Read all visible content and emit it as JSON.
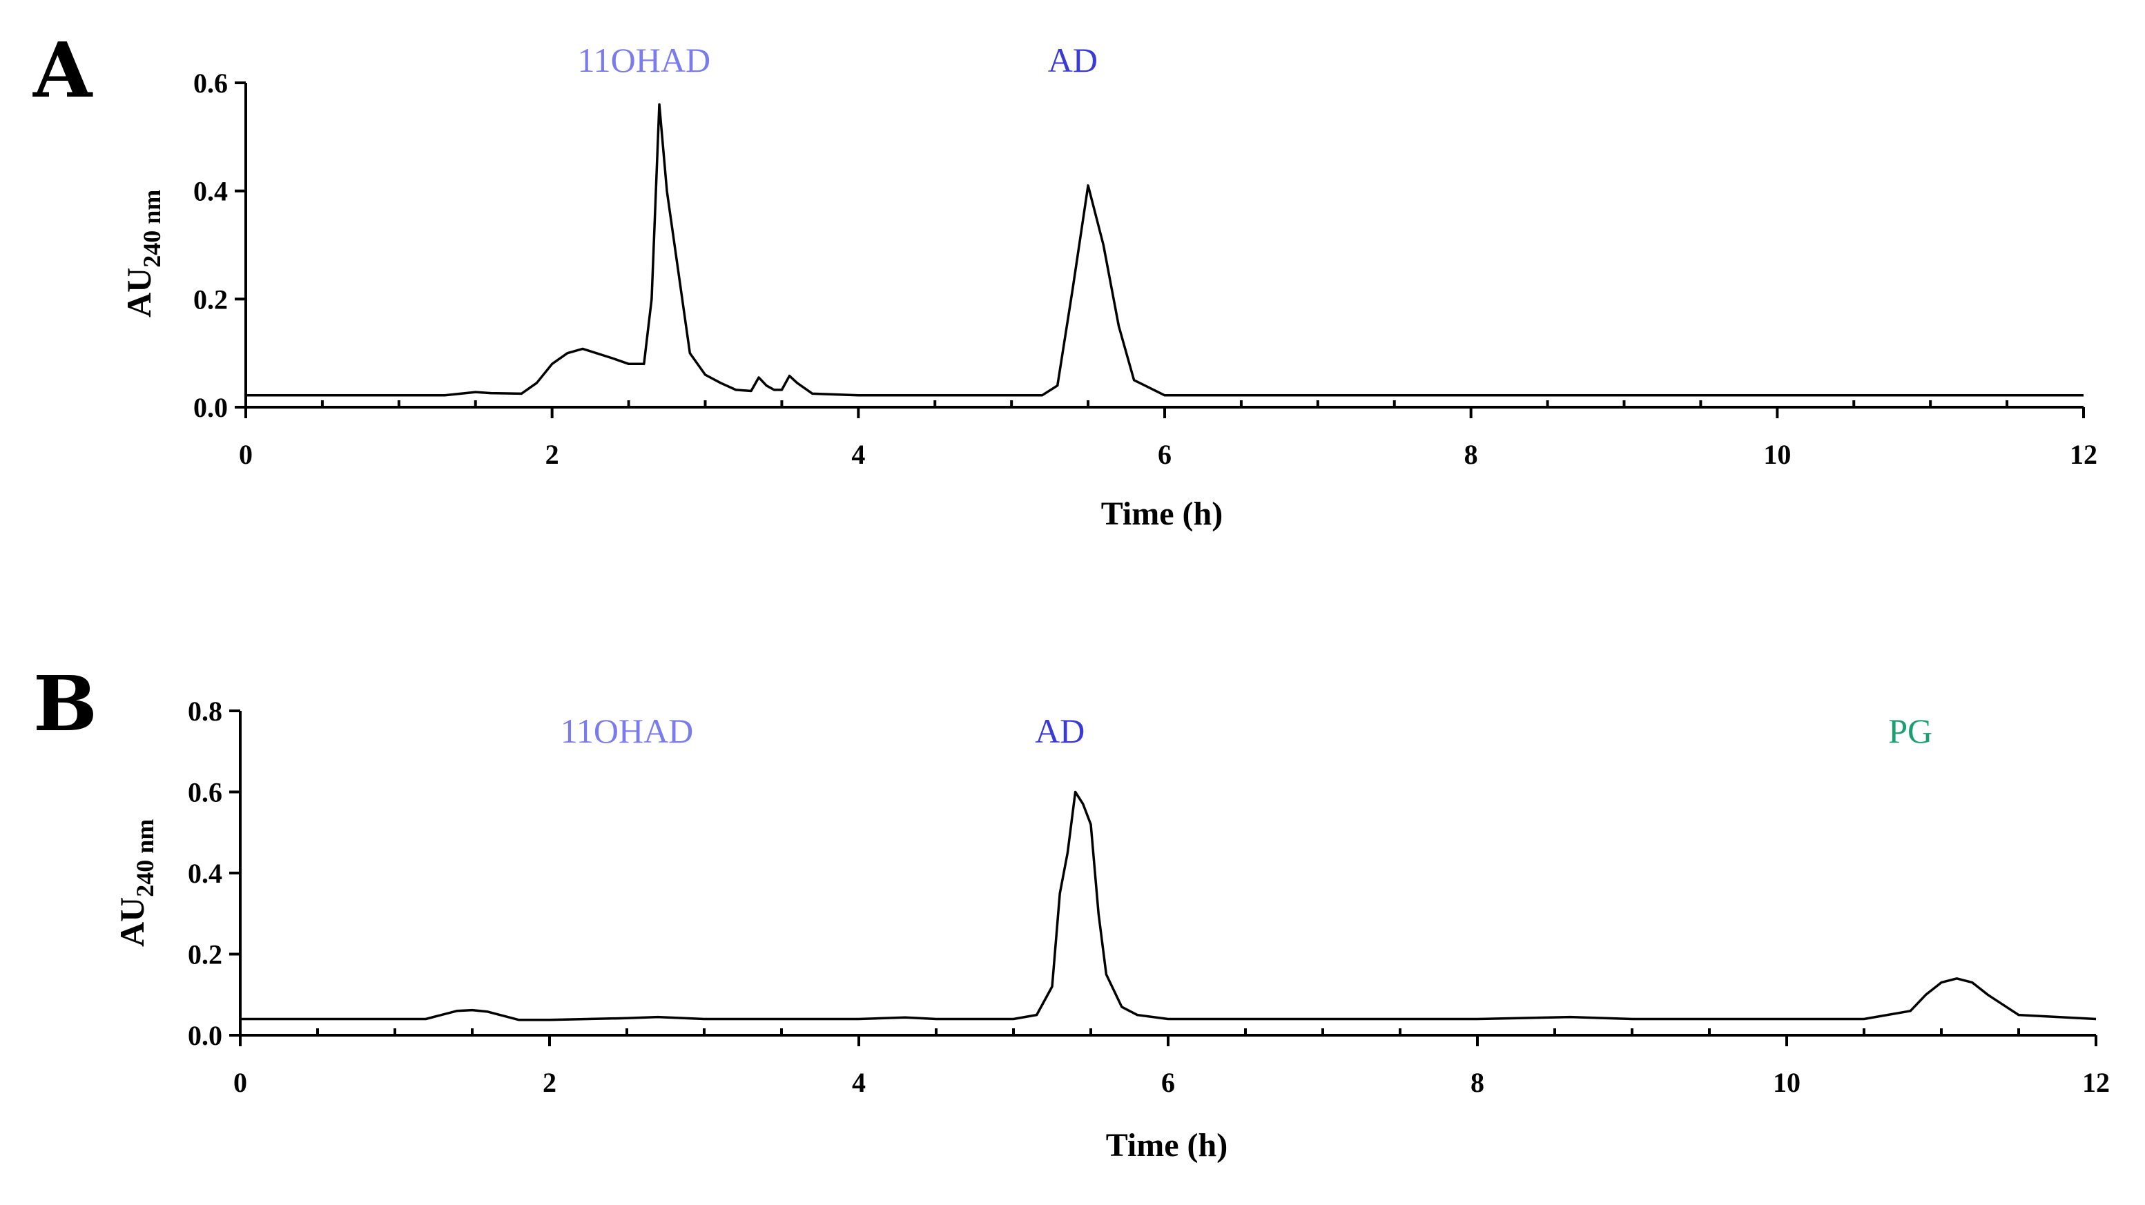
{
  "chart_data": [
    {
      "panel": "A",
      "type": "line",
      "xlabel": "Time (h)",
      "ylabel": "AU",
      "ylabel_subscript": "240 nm",
      "xlim": [
        0,
        12
      ],
      "ylim": [
        0,
        0.6
      ],
      "x_ticks": [
        0,
        2,
        4,
        6,
        8,
        10,
        12
      ],
      "x_tick_labels": [
        "0",
        "2",
        "4",
        "6",
        "8",
        "10",
        "12"
      ],
      "y_ticks": [
        0,
        0.2,
        0.4,
        0.6
      ],
      "y_tick_labels": [
        "0.0",
        "0.2",
        "0.4",
        "0.6"
      ],
      "annotations": [
        {
          "text": "11OHAD",
          "x": 2.6,
          "color": "#7b7bf0"
        },
        {
          "text": "AD",
          "x": 5.4,
          "color": "#3a3ad8"
        }
      ],
      "series": [
        {
          "name": "chromatogram",
          "x": [
            0,
            1.3,
            1.5,
            1.6,
            1.8,
            1.9,
            2.0,
            2.1,
            2.2,
            2.4,
            2.5,
            2.6,
            2.65,
            2.7,
            2.75,
            2.8,
            2.9,
            3.0,
            3.1,
            3.2,
            3.3,
            3.35,
            3.4,
            3.45,
            3.5,
            3.55,
            3.6,
            3.7,
            4.0,
            5.2,
            5.3,
            5.4,
            5.5,
            5.6,
            5.7,
            5.8,
            6.0,
            12
          ],
          "values": [
            0.022,
            0.022,
            0.028,
            0.026,
            0.025,
            0.045,
            0.08,
            0.1,
            0.108,
            0.09,
            0.08,
            0.08,
            0.2,
            0.56,
            0.4,
            0.3,
            0.1,
            0.06,
            0.045,
            0.032,
            0.03,
            0.055,
            0.04,
            0.032,
            0.032,
            0.058,
            0.045,
            0.025,
            0.022,
            0.022,
            0.04,
            0.22,
            0.41,
            0.3,
            0.15,
            0.05,
            0.022,
            0.022
          ]
        }
      ]
    },
    {
      "panel": "B",
      "type": "line",
      "xlabel": "Time (h)",
      "ylabel": "AU",
      "ylabel_subscript": "240 nm",
      "xlim": [
        0,
        12
      ],
      "ylim": [
        0,
        0.8
      ],
      "x_ticks": [
        0,
        2,
        4,
        6,
        8,
        10,
        12
      ],
      "x_tick_labels": [
        "0",
        "2",
        "4",
        "6",
        "8",
        "10",
        "12"
      ],
      "y_ticks": [
        0,
        0.2,
        0.4,
        0.6,
        0.8
      ],
      "y_tick_labels": [
        "0.0",
        "0.2",
        "0.4",
        "0.6",
        "0.8"
      ],
      "annotations": [
        {
          "text": "11OHAD",
          "x": 2.5,
          "color": "#7b7bf0"
        },
        {
          "text": "AD",
          "x": 5.3,
          "color": "#3a3ad8"
        },
        {
          "text": "PG",
          "x": 10.8,
          "color": "#1aa070"
        }
      ],
      "series": [
        {
          "name": "chromatogram",
          "x": [
            0,
            1.2,
            1.4,
            1.5,
            1.6,
            1.8,
            2.0,
            2.5,
            2.7,
            3.0,
            4.0,
            4.3,
            4.5,
            5.0,
            5.15,
            5.25,
            5.3,
            5.35,
            5.4,
            5.45,
            5.5,
            5.55,
            5.6,
            5.7,
            5.8,
            6.0,
            8.0,
            8.6,
            9.0,
            10.5,
            10.8,
            10.9,
            11.0,
            11.1,
            11.2,
            11.3,
            11.5,
            12
          ],
          "values": [
            0.04,
            0.04,
            0.06,
            0.062,
            0.058,
            0.038,
            0.038,
            0.042,
            0.045,
            0.04,
            0.04,
            0.044,
            0.04,
            0.04,
            0.05,
            0.12,
            0.35,
            0.45,
            0.6,
            0.57,
            0.52,
            0.3,
            0.15,
            0.07,
            0.05,
            0.04,
            0.04,
            0.045,
            0.04,
            0.04,
            0.06,
            0.1,
            0.13,
            0.14,
            0.13,
            0.1,
            0.05,
            0.04
          ]
        }
      ]
    }
  ],
  "panels": {
    "a": {
      "letter": "A"
    },
    "b": {
      "letter": "B"
    }
  }
}
